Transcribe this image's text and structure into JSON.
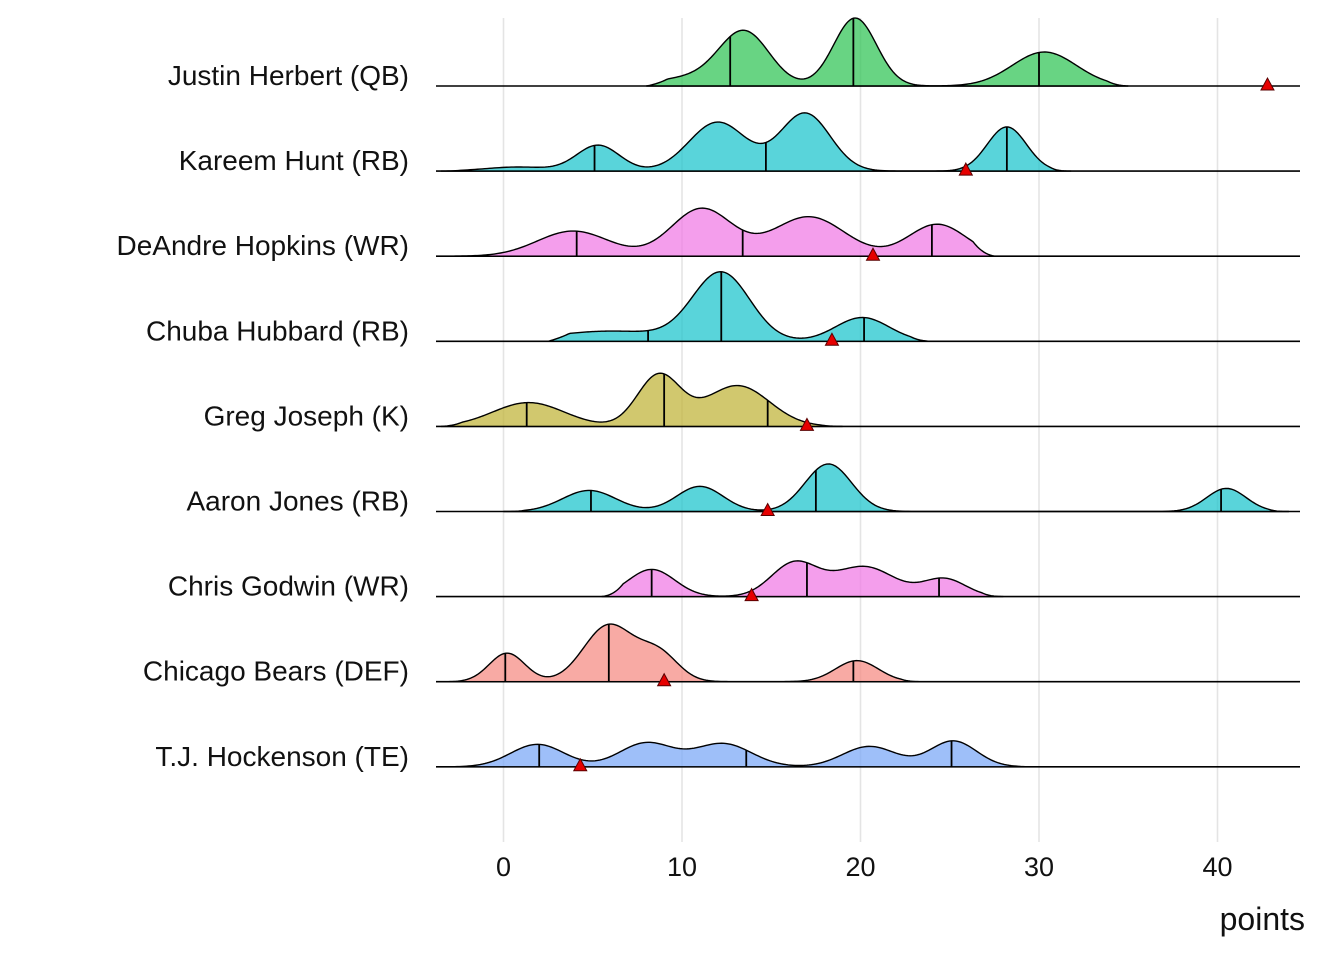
{
  "chart_data": {
    "type": "ridgeline",
    "xlabel": "points",
    "xlim": [
      -3.8,
      44.5
    ],
    "xticks": [
      0,
      10,
      20,
      30,
      40
    ],
    "grid": true,
    "marker_color": "#e60000",
    "series": [
      {
        "name": "Justin Herbert (QB)",
        "color": "#36c55a",
        "range": [
          8.0,
          35.0
        ],
        "peaks": [
          [
            10.5,
            0.12,
            2.0
          ],
          [
            13.5,
            0.78,
            1.4
          ],
          [
            19.7,
            1.0,
            1.2
          ],
          [
            30.3,
            0.5,
            1.8
          ]
        ],
        "quantiles": [
          12.7,
          19.6,
          30.0
        ],
        "actual": 42.8
      },
      {
        "name": "Kareem Hunt (RB)",
        "color": "#22c6cd",
        "range": [
          -3.5,
          31.8
        ],
        "peaks": [
          [
            0.8,
            0.06,
            1.8
          ],
          [
            5.3,
            0.38,
            1.2
          ],
          [
            12.0,
            0.72,
            1.6
          ],
          [
            16.9,
            0.85,
            1.4
          ],
          [
            28.2,
            0.65,
            1.1
          ]
        ],
        "quantiles": [
          5.1,
          14.7,
          28.2
        ],
        "actual": 25.9
      },
      {
        "name": "DeAndre Hopkins (WR)",
        "color": "#f07ee6",
        "range": [
          -3.5,
          27.5
        ],
        "peaks": [
          [
            3.9,
            0.37,
            2.0
          ],
          [
            11.1,
            0.7,
            1.7
          ],
          [
            17.1,
            0.58,
            2.0
          ],
          [
            24.3,
            0.47,
            1.6
          ]
        ],
        "quantiles": [
          4.1,
          13.4,
          24.0
        ],
        "actual": 20.7
      },
      {
        "name": "Chuba Hubbard (RB)",
        "color": "#22c6cd",
        "range": [
          2.5,
          24.0
        ],
        "peaks": [
          [
            6.0,
            0.15,
            3.2
          ],
          [
            12.2,
            1.0,
            1.6
          ],
          [
            20.1,
            0.35,
            1.5
          ]
        ],
        "quantiles": [
          8.1,
          12.2,
          20.2
        ],
        "actual": 18.4
      },
      {
        "name": "Greg Joseph (K)",
        "color": "#c2b63d",
        "range": [
          -3.5,
          19.0
        ],
        "peaks": [
          [
            1.4,
            0.35,
            2.0
          ],
          [
            8.7,
            0.75,
            1.2
          ],
          [
            13.1,
            0.6,
            1.8
          ]
        ],
        "quantiles": [
          1.3,
          9.0,
          14.8
        ],
        "actual": 17.0
      },
      {
        "name": "Aaron Jones (RB)",
        "color": "#22c6cd",
        "range": [
          0.0,
          44.0
        ],
        "peaks": [
          [
            4.8,
            0.31,
            1.5
          ],
          [
            11.0,
            0.37,
            1.3
          ],
          [
            18.2,
            0.7,
            1.3
          ],
          [
            40.5,
            0.34,
            1.1
          ]
        ],
        "quantiles": [
          4.9,
          17.5,
          40.2
        ],
        "actual": 14.8
      },
      {
        "name": "Chris Godwin (WR)",
        "color": "#f07ee6",
        "range": [
          5.5,
          28.0
        ],
        "peaks": [
          [
            8.3,
            0.4,
            1.3
          ],
          [
            16.3,
            0.49,
            1.3
          ],
          [
            20.2,
            0.44,
            1.7
          ],
          [
            24.7,
            0.26,
            1.2
          ]
        ],
        "quantiles": [
          8.3,
          17.0,
          24.4
        ],
        "actual": 13.9
      },
      {
        "name": "Chicago Bears (DEF)",
        "color": "#f68e86",
        "range": [
          -3.5,
          23.5
        ],
        "peaks": [
          [
            0.2,
            0.42,
            1.0
          ],
          [
            5.9,
            0.83,
            1.4
          ],
          [
            8.7,
            0.4,
            1.1
          ],
          [
            19.8,
            0.31,
            1.2
          ]
        ],
        "quantiles": [
          0.1,
          5.9,
          19.6
        ],
        "actual": 9.0
      },
      {
        "name": "T.J. Hockenson (TE)",
        "color": "#7eaaf7",
        "range": [
          -3.5,
          30.0
        ],
        "peaks": [
          [
            1.9,
            0.33,
            1.5
          ],
          [
            8.0,
            0.35,
            1.5
          ],
          [
            12.3,
            0.34,
            1.6
          ],
          [
            20.5,
            0.3,
            1.5
          ],
          [
            25.2,
            0.38,
            1.3
          ]
        ],
        "quantiles": [
          2.0,
          13.6,
          25.1
        ],
        "actual": 4.3
      }
    ]
  }
}
